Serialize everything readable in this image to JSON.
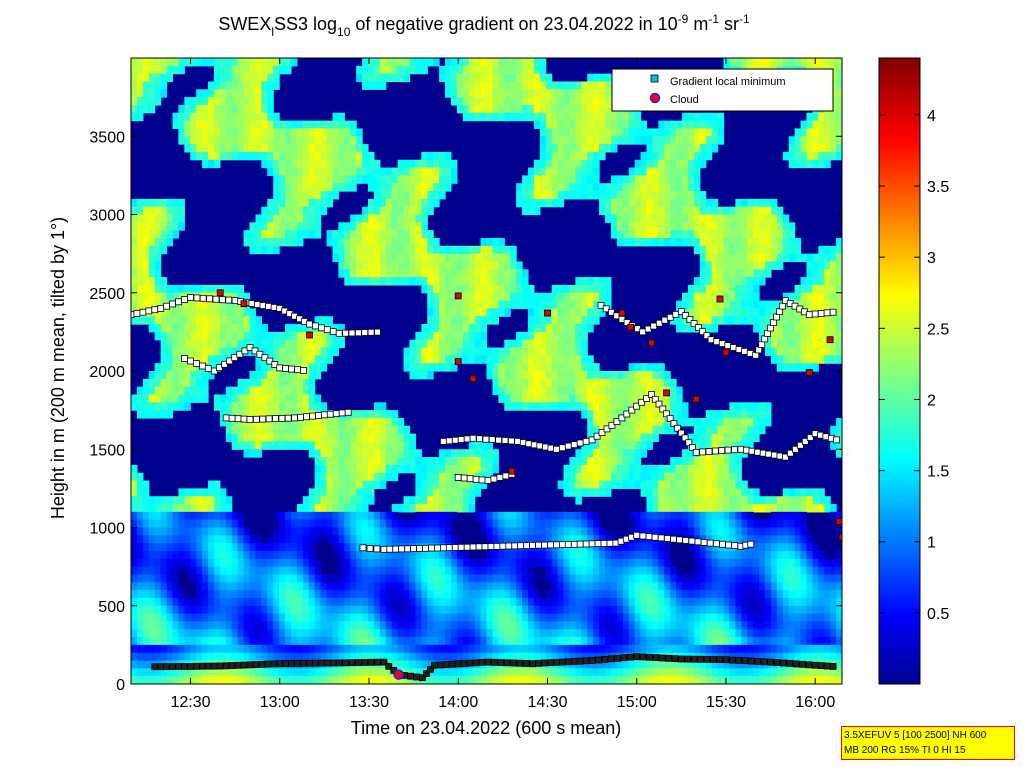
{
  "chart_data": {
    "type": "heatmap",
    "title": {
      "pre": "SWEX",
      "sub1": "l",
      "mid1": "SS3 log",
      "sub2": "10",
      "mid2": " of negative gradient on 23.04.2022 in 10",
      "sup1": "-9",
      "mid3": " m",
      "sup2": "-1",
      "mid4": " sr",
      "sup3": "-1"
    },
    "xlabel": "Time on 23.04.2022 (600 s mean)",
    "ylabel": "Height in m (200 m mean, tilted by 1°)",
    "x_range": [
      "12:10",
      "16:09"
    ],
    "y_range": [
      0,
      4000
    ],
    "x_ticks": [
      "12:30",
      "13:00",
      "13:30",
      "14:00",
      "14:30",
      "15:00",
      "15:30",
      "16:00"
    ],
    "y_ticks": [
      0,
      500,
      1000,
      1500,
      2000,
      2500,
      3000,
      3500
    ],
    "colorbar": {
      "range": [
        0,
        4.4
      ],
      "ticks": [
        "0.5",
        "1",
        "1.5",
        "2",
        "2.5",
        "3",
        "3.5",
        "4"
      ],
      "colormap": "jet"
    },
    "legend": {
      "placement": "top-right",
      "entries": [
        {
          "label": "Gradient local minimum",
          "marker": "square",
          "color": "#00c8c8"
        },
        {
          "label": "Cloud",
          "marker": "circle",
          "color": "#ff0000"
        }
      ]
    },
    "gradient_minimum_layers": [
      {
        "name": "surface",
        "points": [
          [
            "12:18",
            110
          ],
          [
            "12:40",
            115
          ],
          [
            "13:00",
            130
          ],
          [
            "13:20",
            135
          ],
          [
            "13:35",
            140
          ],
          [
            "13:40",
            60
          ],
          [
            "13:48",
            40
          ],
          [
            "13:52",
            120
          ],
          [
            "14:10",
            140
          ],
          [
            "14:25",
            130
          ],
          [
            "14:45",
            150
          ],
          [
            "15:00",
            175
          ],
          [
            "15:15",
            160
          ],
          [
            "15:30",
            155
          ],
          [
            "15:45",
            140
          ],
          [
            "16:00",
            120
          ],
          [
            "16:08",
            110
          ]
        ]
      },
      {
        "name": "layer-2400",
        "points": [
          [
            "12:10",
            2360
          ],
          [
            "12:20",
            2400
          ],
          [
            "12:30",
            2470
          ],
          [
            "12:45",
            2450
          ],
          [
            "13:00",
            2400
          ],
          [
            "13:10",
            2300
          ],
          [
            "13:20",
            2240
          ],
          [
            "13:35",
            2250
          ]
        ]
      },
      {
        "name": "layer-2000",
        "points": [
          [
            "12:28",
            2080
          ],
          [
            "12:38",
            2000
          ],
          [
            "12:50",
            2150
          ],
          [
            "13:00",
            2020
          ],
          [
            "13:10",
            2000
          ]
        ]
      },
      {
        "name": "layer-1700",
        "points": [
          [
            "12:42",
            1700
          ],
          [
            "12:50",
            1690
          ],
          [
            "13:05",
            1700
          ],
          [
            "13:25",
            1740
          ]
        ]
      },
      {
        "name": "layer-1560",
        "points": [
          [
            "13:55",
            1550
          ],
          [
            "14:05",
            1570
          ],
          [
            "14:20",
            1550
          ],
          [
            "14:33",
            1500
          ],
          [
            "14:45",
            1560
          ],
          [
            "14:55",
            1700
          ],
          [
            "15:05",
            1850
          ],
          [
            "15:20",
            1480
          ],
          [
            "15:35",
            1500
          ],
          [
            "15:50",
            1450
          ],
          [
            "16:00",
            1600
          ],
          [
            "16:09",
            1550
          ]
        ]
      },
      {
        "name": "layer-1300",
        "points": [
          [
            "14:00",
            1320
          ],
          [
            "14:10",
            1300
          ],
          [
            "14:20",
            1350
          ]
        ]
      },
      {
        "name": "layer-880",
        "points": [
          [
            "13:28",
            870
          ],
          [
            "13:35",
            860
          ],
          [
            "14:53",
            900
          ],
          [
            "15:00",
            950
          ],
          [
            "15:35",
            880
          ],
          [
            "15:40",
            900
          ]
        ]
      },
      {
        "name": "layer-2350-east",
        "points": [
          [
            "14:48",
            2420
          ],
          [
            "14:55",
            2330
          ],
          [
            "15:02",
            2250
          ],
          [
            "15:15",
            2380
          ],
          [
            "15:25",
            2200
          ],
          [
            "15:40",
            2100
          ],
          [
            "15:50",
            2450
          ],
          [
            "15:58",
            2360
          ],
          [
            "16:08",
            2380
          ]
        ]
      }
    ],
    "cloud_points": [
      {
        "x": "13:40",
        "y": 60
      },
      {
        "x": "12:40",
        "y": 2500
      },
      {
        "x": "12:48",
        "y": 2430
      },
      {
        "x": "13:10",
        "y": 2230
      },
      {
        "x": "14:00",
        "y": 2480
      },
      {
        "x": "14:00",
        "y": 2060
      },
      {
        "x": "14:05",
        "y": 1950
      },
      {
        "x": "14:30",
        "y": 2370
      },
      {
        "x": "14:55",
        "y": 2370
      },
      {
        "x": "14:58",
        "y": 2280
      },
      {
        "x": "15:05",
        "y": 2180
      },
      {
        "x": "15:10",
        "y": 1860
      },
      {
        "x": "15:20",
        "y": 1820
      },
      {
        "x": "15:30",
        "y": 2120
      },
      {
        "x": "15:28",
        "y": 2460
      },
      {
        "x": "15:58",
        "y": 1990
      },
      {
        "x": "16:05",
        "y": 2200
      },
      {
        "x": "16:09",
        "y": 940
      },
      {
        "x": "16:08",
        "y": 1040
      },
      {
        "x": "14:18",
        "y": 1360
      }
    ]
  },
  "info_box": {
    "line1": "3.5XEFUV 5 [100 2500] NH 600",
    "line2": "MB 200 RG 15% TI 0 HI 15"
  }
}
